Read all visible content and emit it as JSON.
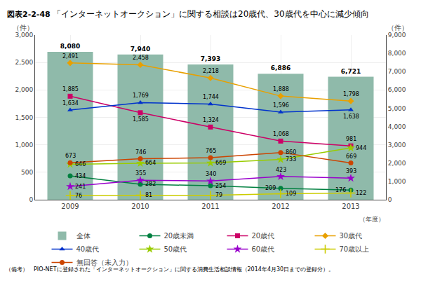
{
  "chart_data": {
    "type": "bar",
    "title": "「インターネットオークション」に関する相談は20歳代、30歳代を中心に減少傾向",
    "annotations": [
      "図表2-2-48",
      "（備考）　PIO-NETに登録された「インターネットオークション」に関する消費生活相談情報（2014年4月30日までの登録分）。"
    ],
    "x_label": "（年度）",
    "y_label": "（件）",
    "y2_label": "（件）",
    "categories": [
      "2009",
      "2010",
      "2011",
      "2012",
      "2013"
    ],
    "series": [
      {
        "name": "全体",
        "type": "bar",
        "axis": "y2",
        "color": "#8fbaaa",
        "values": [
          8080,
          7940,
          7393,
          6886,
          6721
        ],
        "value_labels": [
          "8,080",
          "7,940",
          "7,393",
          "6,886",
          "6,721"
        ]
      },
      {
        "name": "20歳未満",
        "type": "line",
        "color": "#008040",
        "marker": "circle",
        "values": [
          434,
          282,
          254,
          209,
          176
        ],
        "value_labels": [
          "434",
          "282",
          "254",
          "209",
          "176"
        ]
      },
      {
        "name": "20歳代",
        "type": "line",
        "color": "#cc0066",
        "marker": "square",
        "values": [
          1885,
          1585,
          1324,
          1068,
          981
        ],
        "value_labels": [
          "1,885",
          "1,585",
          "1,324",
          "1,068",
          "981"
        ]
      },
      {
        "name": "30歳代",
        "type": "line",
        "color": "#e8a000",
        "marker": "diamond",
        "values": [
          2491,
          2458,
          2218,
          1888,
          1798
        ],
        "value_labels": [
          "2,491",
          "2,458",
          "2,218",
          "1,888",
          "1,798"
        ]
      },
      {
        "name": "40歳代",
        "type": "line",
        "color": "#0033cc",
        "marker": "triangle-up",
        "values": [
          1634,
          1769,
          1744,
          1596,
          1638
        ],
        "value_labels": [
          "1,634",
          "1,769",
          "1,744",
          "1,596",
          "1,638"
        ]
      },
      {
        "name": "50歳代",
        "type": "line",
        "color": "#99cc00",
        "marker": "star",
        "values": [
          646,
          664,
          669,
          733,
          944
        ],
        "value_labels": [
          "646",
          "664",
          "669",
          "733",
          "944"
        ]
      },
      {
        "name": "60歳代",
        "type": "line",
        "color": "#9900cc",
        "marker": "star",
        "values": [
          241,
          355,
          340,
          423,
          393
        ],
        "value_labels": [
          "241",
          "355",
          "340",
          "423",
          "393"
        ]
      },
      {
        "name": "70歳以上",
        "type": "line",
        "color": "#cccc00",
        "marker": "plus",
        "values": [
          76,
          81,
          79,
          109,
          122
        ],
        "value_labels": [
          "76",
          "81",
          "79",
          "109",
          "122"
        ]
      },
      {
        "name": "無回答（未入力）",
        "type": "line",
        "color": "#cc4400",
        "marker": "circle",
        "values": [
          673,
          746,
          765,
          860,
          669
        ],
        "value_labels": [
          "673",
          "746",
          "765",
          "860",
          "669"
        ]
      }
    ],
    "ylim": [
      0,
      3000
    ],
    "yticks": [
      0,
      500,
      {
        "value": 1000,
        "label": "1,000"
      },
      {
        "value": 1500,
        "label": "1,500"
      },
      {
        "value": 2000,
        "label": "2,000"
      },
      {
        "value": 2500,
        "label": "2,500"
      },
      {
        "value": 3000,
        "label": "3,000"
      }
    ],
    "y2lim": [
      0,
      9000
    ],
    "y2ticks": [
      0,
      {
        "value": 1000,
        "label": "1,000"
      },
      {
        "value": 2000,
        "label": "2,000"
      },
      {
        "value": 3000,
        "label": "3,000"
      },
      {
        "value": 4000,
        "label": "4,000"
      },
      {
        "value": 5000,
        "label": "5,000"
      },
      {
        "value": 6000,
        "label": "6,000"
      },
      {
        "value": 7000,
        "label": "7,000"
      },
      {
        "value": 8000,
        "label": "8,000"
      },
      {
        "value": 9000,
        "label": "9,000"
      }
    ],
    "grid": true,
    "legend": "bottom",
    "data_labels": true
  }
}
